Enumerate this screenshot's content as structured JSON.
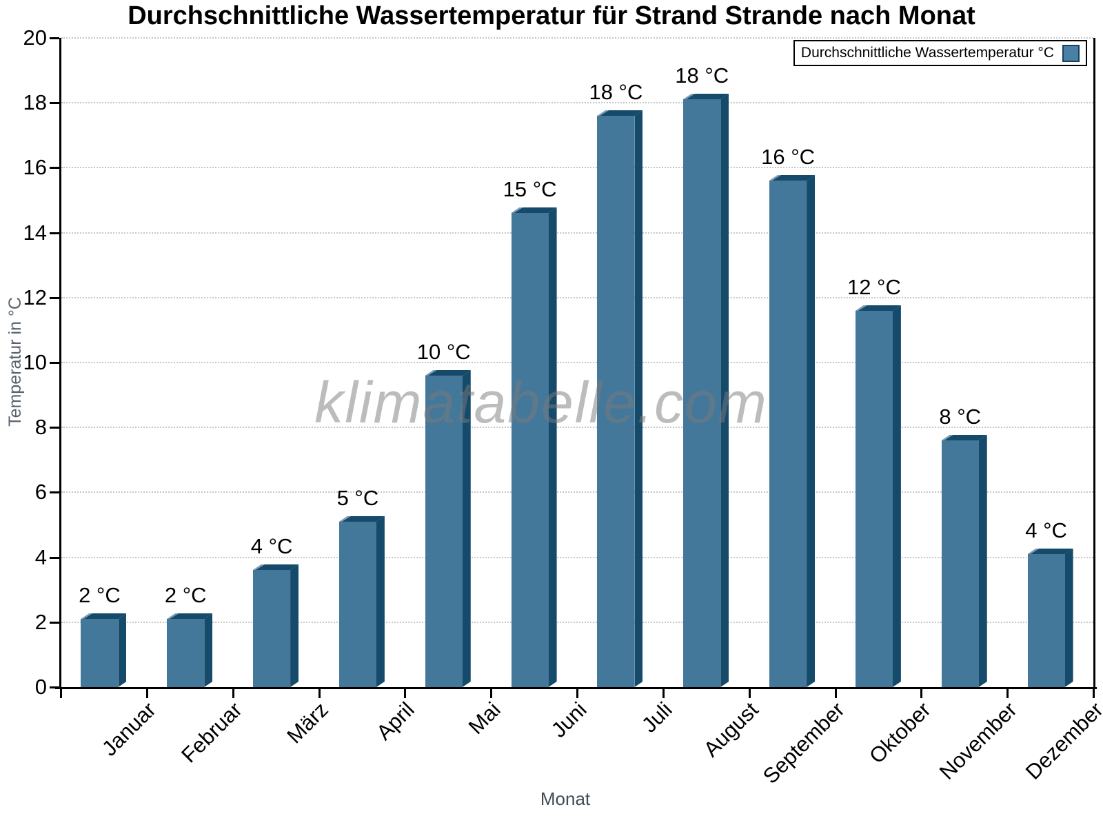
{
  "chart_data": {
    "type": "bar",
    "title": "Durchschnittliche Wassertemperatur für Strand Strande nach Monat",
    "xlabel": "Monat",
    "ylabel": "Temperatur in °C",
    "watermark": "klimatabelle.com",
    "legend": {
      "label": "Durchschnittliche Wassertemperatur °C",
      "position": "top-right"
    },
    "categories": [
      "Januar",
      "Februar",
      "März",
      "April",
      "Mai",
      "Juni",
      "Juli",
      "August",
      "September",
      "Oktober",
      "November",
      "Dezember"
    ],
    "values": [
      2.1,
      2.1,
      3.6,
      5.1,
      9.6,
      14.6,
      17.6,
      18.1,
      15.6,
      11.6,
      7.6,
      4.1
    ],
    "bar_labels": [
      "2 °C",
      "2 °C",
      "4 °C",
      "5 °C",
      "10 °C",
      "15 °C",
      "18 °C",
      "18 °C",
      "16 °C",
      "12 °C",
      "8 °C",
      "4 °C"
    ],
    "ylim": [
      0,
      20
    ],
    "yticks": [
      0,
      2,
      4,
      6,
      8,
      10,
      12,
      14,
      16,
      18,
      20
    ],
    "grid": "horizontal-dotted",
    "colors": {
      "bar_front": "#44789b",
      "bar_side": "#154a6b",
      "bar_bevel": "#7f9db5",
      "legend_swatch": "#4a80a6",
      "grid": "#c6c6c6",
      "axis": "#000000",
      "y_axis_title": "#57626c",
      "x_axis_title": "#414b55",
      "watermark": "#7a7a7a"
    }
  }
}
